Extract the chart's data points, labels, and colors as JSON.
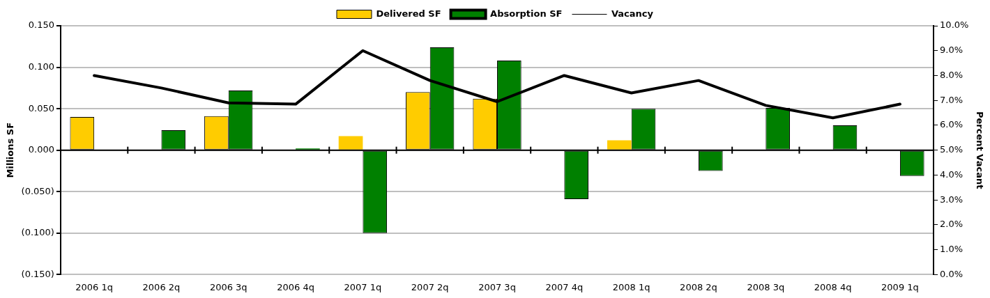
{
  "chart_data": {
    "type": "bar",
    "categories": [
      "2006 1q",
      "2006 2q",
      "2006 3q",
      "2006 4q",
      "2007 1q",
      "2007 2q",
      "2007 3q",
      "2007 4q",
      "2008 1q",
      "2008 2q",
      "2008 3q",
      "2008 4q",
      "2009 1q"
    ],
    "series": [
      {
        "name": "Delivered SF",
        "color": "#ffcc00",
        "values": [
          0.04,
          null,
          0.041,
          null,
          0.017,
          0.07,
          0.062,
          null,
          0.012,
          null,
          null,
          null,
          null
        ]
      },
      {
        "name": "Absorption SF",
        "color": "#008000",
        "values": [
          null,
          0.024,
          0.072,
          0.002,
          -0.1,
          0.124,
          0.108,
          -0.059,
          0.05,
          -0.025,
          0.051,
          0.03,
          -0.031
        ]
      },
      {
        "name": "Vacancy",
        "type": "line",
        "axis": "y2",
        "color": "#000000",
        "values": [
          8.0,
          7.5,
          6.9,
          6.85,
          9.0,
          7.8,
          6.95,
          8.0,
          7.3,
          7.8,
          6.8,
          6.3,
          6.85
        ]
      }
    ],
    "ylabel": "Millions SF",
    "y2label": "Percent Vacant",
    "ylim": [
      -0.15,
      0.15
    ],
    "yticks": [
      {
        "value": -0.15,
        "label": "(0.150)"
      },
      {
        "value": -0.1,
        "label": "(0.100)"
      },
      {
        "value": -0.05,
        "label": "(0.050)"
      },
      {
        "value": 0,
        "label": "0.000"
      },
      {
        "value": 0.05,
        "label": "0.050"
      },
      {
        "value": 0.1,
        "label": "0.100"
      },
      {
        "value": 0.15,
        "label": "0.150"
      }
    ],
    "y2lim": [
      0,
      10
    ],
    "y2ticks": [
      {
        "value": 0,
        "label": "0.0%"
      },
      {
        "value": 1,
        "label": "1.0%"
      },
      {
        "value": 2,
        "label": "2.0%"
      },
      {
        "value": 3,
        "label": "3.0%"
      },
      {
        "value": 4,
        "label": "4.0%"
      },
      {
        "value": 5,
        "label": "5.0%"
      },
      {
        "value": 6,
        "label": "6.0%"
      },
      {
        "value": 7,
        "label": "7.0%"
      },
      {
        "value": 8,
        "label": "8.0%"
      },
      {
        "value": 9,
        "label": "9.0%"
      },
      {
        "value": 10,
        "label": "10.0%"
      }
    ],
    "grid": "y",
    "legend": "top",
    "marker": "none",
    "line_style": "solid"
  }
}
